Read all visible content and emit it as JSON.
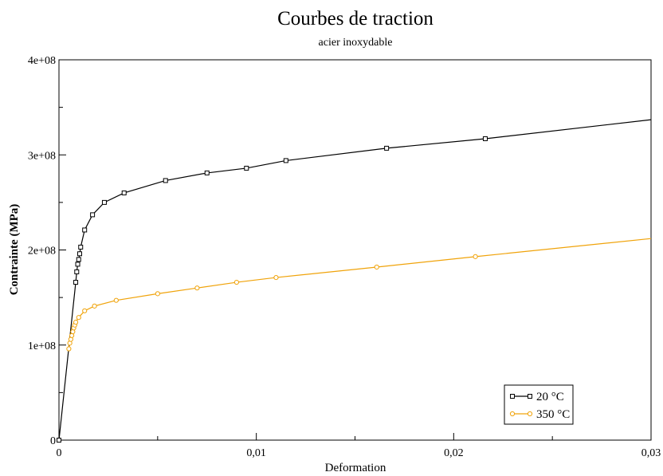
{
  "chart_data": {
    "type": "line",
    "title": "Courbes de traction",
    "subtitle": "acier inoxydable",
    "xlabel": "Deformation",
    "ylabel": "Contrainte (MPa)",
    "xlim": [
      0,
      0.03
    ],
    "ylim": [
      0,
      400000000
    ],
    "xticks": [
      {
        "value": 0,
        "label": "0"
      },
      {
        "value": 0.01,
        "label": "0,01"
      },
      {
        "value": 0.02,
        "label": "0,02"
      },
      {
        "value": 0.03,
        "label": "0,03"
      }
    ],
    "yticks": [
      {
        "value": 0,
        "label": "0"
      },
      {
        "value": 100000000,
        "label": "1e+08"
      },
      {
        "value": 200000000,
        "label": "2e+08"
      },
      {
        "value": 300000000,
        "label": "3e+08"
      },
      {
        "value": 400000000,
        "label": "4e+08"
      }
    ],
    "grid": false,
    "legend_position": "bottom-right",
    "series": [
      {
        "name": "20 °C",
        "color": "#000000",
        "marker": "square",
        "x": [
          0,
          0.00085,
          0.0009,
          0.00095,
          0.001,
          0.00105,
          0.0011,
          0.0013,
          0.0017,
          0.0023,
          0.0033,
          0.0054,
          0.0075,
          0.0095,
          0.0115,
          0.0166,
          0.0216,
          0.03
        ],
        "y": [
          0,
          166000000,
          177000000,
          185000000,
          190000000,
          196000000,
          203000000,
          221000000,
          237000000,
          250000000,
          260000000,
          273000000,
          281000000,
          286000000,
          294000000,
          307000000,
          317000000,
          337000000
        ],
        "markers_shown": [
          true,
          true,
          true,
          true,
          true,
          true,
          true,
          true,
          true,
          true,
          true,
          true,
          true,
          true,
          true,
          true,
          true,
          false
        ]
      },
      {
        "name": "350 °C",
        "color": "#f0a30a",
        "marker": "circle",
        "x": [
          0.0005,
          0.00055,
          0.0006,
          0.00065,
          0.0007,
          0.00075,
          0.0008,
          0.00085,
          0.001,
          0.0013,
          0.0018,
          0.0029,
          0.005,
          0.007,
          0.009,
          0.011,
          0.0161,
          0.0211,
          0.03
        ],
        "y": [
          96000000,
          102000000,
          106000000,
          110000000,
          114000000,
          118000000,
          121000000,
          124000000,
          129000000,
          136000000,
          141000000,
          147000000,
          154000000,
          160000000,
          166000000,
          171000000,
          182000000,
          193000000,
          212000000
        ],
        "markers_shown": [
          true,
          true,
          true,
          true,
          true,
          true,
          true,
          true,
          true,
          true,
          true,
          true,
          true,
          true,
          true,
          true,
          true,
          true,
          false
        ]
      }
    ]
  }
}
